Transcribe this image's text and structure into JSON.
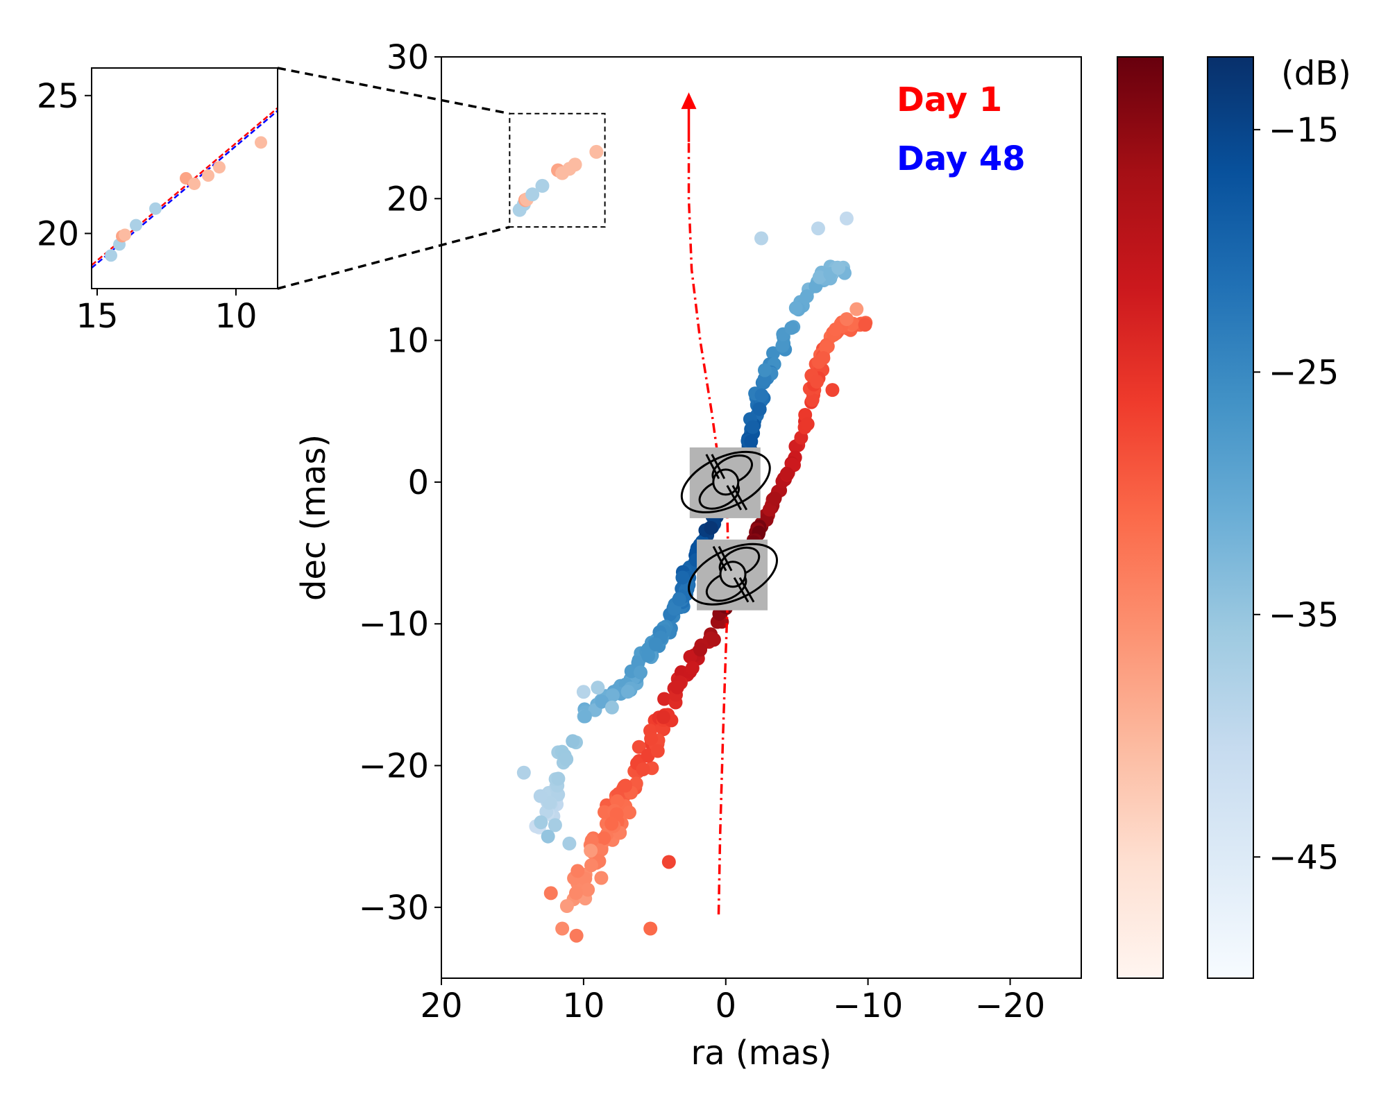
{
  "chart_data": [
    {
      "type": "scatter",
      "xlabel": "ra (mas)",
      "ylabel": "dec (mas)",
      "xlim": [
        20,
        -25
      ],
      "ylim": [
        -35,
        30
      ],
      "xticks": [
        20,
        10,
        0,
        -10,
        -20
      ],
      "yticks": [
        30,
        20,
        10,
        0,
        -10,
        -20,
        -30
      ],
      "xtick_labels": [
        "20",
        "10",
        "0",
        "−10",
        "−20"
      ],
      "ytick_labels": [
        "30",
        "20",
        "10",
        "0",
        "−10",
        "−20",
        "−30"
      ],
      "legend_texts": [
        {
          "text": "Day 1",
          "color": "#ff0000"
        },
        {
          "text": "Day 48",
          "color": "#0000ff"
        }
      ],
      "legend_placement": "top-right",
      "zoom_box": {
        "x": [
          15.2,
          8.5
        ],
        "y": [
          18,
          26
        ]
      },
      "source_markers": [
        {
          "x": 0.0,
          "y": 0.0
        },
        {
          "x": -0.5,
          "y": -6.5
        }
      ],
      "trajectory": {
        "color": "#ff0000",
        "style": "dash-dot",
        "points": [
          [
            0.5,
            -30.5
          ],
          [
            0.4,
            -25
          ],
          [
            0.2,
            -18
          ],
          [
            0.0,
            -12
          ],
          [
            -0.2,
            -6.5
          ],
          [
            -0.1,
            -2
          ],
          [
            0.3,
            0
          ],
          [
            1.0,
            5
          ],
          [
            1.8,
            10
          ],
          [
            2.4,
            15
          ],
          [
            2.6,
            20
          ],
          [
            2.6,
            24
          ]
        ],
        "arrow_head": [
          2.6,
          27.5
        ]
      },
      "series": [
        {
          "colormap": "Reds",
          "values": [],
          "trajectory": [
            [
              -9.5,
              11
            ],
            [
              -8,
              11
            ],
            [
              -7,
              10
            ],
            [
              -6.5,
              8
            ],
            [
              -6,
              6
            ],
            [
              -5.5,
              4
            ],
            [
              -5,
              2
            ],
            [
              -4,
              0
            ],
            [
              -3,
              -2
            ],
            [
              -2,
              -4
            ],
            [
              -1.5,
              -6
            ],
            [
              -0.5,
              -8
            ],
            [
              0.5,
              -10
            ],
            [
              1.5,
              -11.5
            ],
            [
              2.5,
              -13
            ],
            [
              3.5,
              -15
            ],
            [
              4.5,
              -17
            ],
            [
              5.5,
              -19
            ],
            [
              6.5,
              -21
            ],
            [
              7.5,
              -23
            ],
            [
              8,
              -24.5
            ],
            [
              9,
              -26
            ],
            [
              10,
              -28
            ],
            [
              11,
              -30
            ]
          ]
        },
        {
          "colormap": "Blues",
          "values": [],
          "trajectory": [
            [
              -8,
              15
            ],
            [
              -7,
              14.5
            ],
            [
              -6,
              14
            ],
            [
              -5,
              12
            ],
            [
              -4,
              10
            ],
            [
              -3,
              8
            ],
            [
              -2.5,
              6
            ],
            [
              -2,
              4
            ],
            [
              -1.5,
              2
            ],
            [
              -0.5,
              0
            ],
            [
              0.5,
              -2
            ],
            [
              1.5,
              -4
            ],
            [
              2.5,
              -6
            ],
            [
              3,
              -8
            ],
            [
              4,
              -10
            ],
            [
              5,
              -11.5
            ],
            [
              6,
              -13
            ],
            [
              7,
              -14.5
            ],
            [
              8,
              -15
            ],
            [
              10,
              -16
            ],
            [
              12,
              -21
            ],
            [
              12.5,
              -23
            ],
            [
              13,
              -25
            ]
          ]
        }
      ],
      "colorbars": [
        {
          "colormap": "Reds",
          "tick_labels": []
        },
        {
          "colormap": "Blues",
          "unit": "(dB)",
          "range": [
            -50,
            -12
          ],
          "ticks": [
            -15,
            -25,
            -35,
            -45
          ],
          "tick_labels": [
            "−15",
            "−25",
            "−35",
            "−45"
          ]
        }
      ]
    },
    {
      "type": "scatter",
      "xlim": [
        15.2,
        8.5
      ],
      "ylim": [
        18,
        26
      ],
      "xticks": [
        15,
        10
      ],
      "yticks": [
        25,
        20
      ],
      "xtick_labels": [
        "15",
        "10"
      ],
      "ytick_labels": [
        "25",
        "20"
      ],
      "fit_lines": [
        {
          "color": "#ff0000",
          "style": "dashed",
          "x": [
            15.2,
            8.5
          ],
          "y": [
            18.85,
            24.55
          ]
        },
        {
          "color": "#0000ff",
          "style": "dashed",
          "x": [
            15.2,
            8.5
          ],
          "y": [
            18.75,
            24.45
          ]
        }
      ],
      "points": [
        {
          "x": 14.5,
          "y": 19.2,
          "c": "#abd0e6"
        },
        {
          "x": 14.2,
          "y": 19.6,
          "c": "#abd0e6"
        },
        {
          "x": 14.1,
          "y": 19.9,
          "c": "#fca486"
        },
        {
          "x": 14.0,
          "y": 19.95,
          "c": "#fcbba1"
        },
        {
          "x": 13.6,
          "y": 20.3,
          "c": "#abd0e6"
        },
        {
          "x": 12.9,
          "y": 20.9,
          "c": "#abd0e6"
        },
        {
          "x": 11.8,
          "y": 22.0,
          "c": "#fca486"
        },
        {
          "x": 11.5,
          "y": 21.8,
          "c": "#fcbba1"
        },
        {
          "x": 11.0,
          "y": 22.1,
          "c": "#fcbba1"
        },
        {
          "x": 10.6,
          "y": 22.4,
          "c": "#fcbba1"
        },
        {
          "x": 9.1,
          "y": 23.3,
          "c": "#fcbba1"
        }
      ]
    }
  ]
}
